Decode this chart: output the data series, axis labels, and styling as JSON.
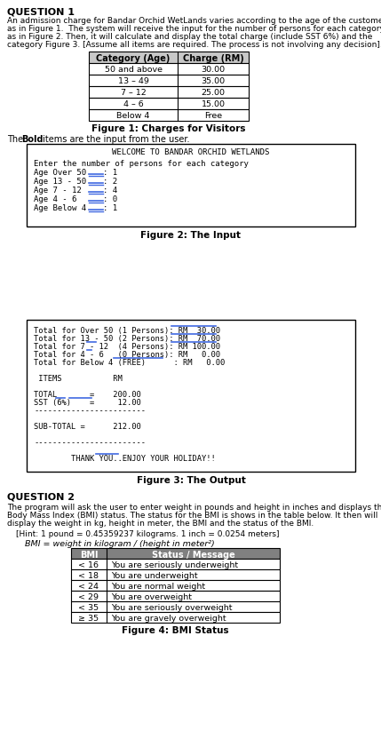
{
  "title_q1": "QUESTION 1",
  "desc_q1_lines": [
    "An admission charge for Bandar Orchid WetLands varies according to the age of the customer",
    "as in Figure 1.  The system will receive the input for the number of persons for each category",
    "as in Figure 2. Then, it will calculate and display the total charge (include SST 6%) and the",
    "category Figure 3. [Assume all items are required. The process is not involving any decision]."
  ],
  "table1_headers": [
    "Category (Age)",
    "Charge (RM)"
  ],
  "table1_rows": [
    [
      "50 and above",
      "30.00"
    ],
    [
      "13 – 49",
      "35.00"
    ],
    [
      "7 – 12",
      "25.00"
    ],
    [
      "4 – 6",
      "15.00"
    ],
    [
      "Below 4",
      "Free"
    ]
  ],
  "figure1_caption": "Figure 1: Charges for Visitors",
  "bold_note_pre": "The ",
  "bold_note_bold": "Bold",
  "bold_note_post": " items are the input from the user.",
  "fig2_title": "WELCOME TO BANDAR ORCHID WETLANDS",
  "fig2_enter": "Enter the number of persons for each category",
  "fig2_rows": [
    [
      "Age Over 50 ",
      "1"
    ],
    [
      "Age 13 - 50 ",
      "2"
    ],
    [
      "Age 7 - 12  ",
      "4"
    ],
    [
      "Age 4 - 6   ",
      "0"
    ],
    [
      "Age Below 4 ",
      "1"
    ]
  ],
  "figure2_caption": "Figure 2: The Input",
  "fig3_lines": [
    "Total for Over 50 (1 Persons): RM  30.00",
    "Total for 13 - 50 (2 Persons): RM  70.00",
    "Total for 7 - 12  (4 Persons): RM 100.00",
    "Total for 4 - 6   (0 Persons): RM   0.00",
    "Total for Below 4 (FREE)      : RM   0.00",
    "",
    " ITEMS           RM",
    "",
    "TOTAL       =    200.00",
    "SST (6%)    =     12.00",
    "------------------------",
    "",
    "SUB-TOTAL =      212.00",
    "",
    "------------------------",
    "",
    "        THANK YOU..ENJOY YOUR HOLIDAY!!"
  ],
  "figure3_caption": "Figure 3: The Output",
  "title_q2": "QUESTION 2",
  "desc_q2_lines": [
    "The program will ask the user to enter weight in pounds and height in inches and displays the",
    "Body Mass Index (BMI) status. The status for the BMI is shows in the table below. It then will",
    "display the weight in kg, height in meter, the BMI and the status of the BMI."
  ],
  "hint_q2": "[Hint: 1 pound = 0.45359237 kilograms. 1 inch = 0.0254 meters]",
  "bmi_formula": "BMI = weight in kilogram / (height in meter²)",
  "table2_headers": [
    "BMI",
    "Status / Message"
  ],
  "table2_rows": [
    [
      "< 16",
      "You are seriously underweight"
    ],
    [
      "< 18",
      "You are underweight"
    ],
    [
      "< 24",
      "You are normal weight"
    ],
    [
      "< 29",
      "You are overweight"
    ],
    [
      "< 35",
      "You are seriously overweight"
    ],
    [
      "≥ 35",
      "You are gravely overweight"
    ]
  ],
  "figure4_caption": "Figure 4: BMI Status",
  "blue_color": "#4169e1",
  "table1_header_bg": "#c8c8c8",
  "table2_header_bg": "#808080"
}
